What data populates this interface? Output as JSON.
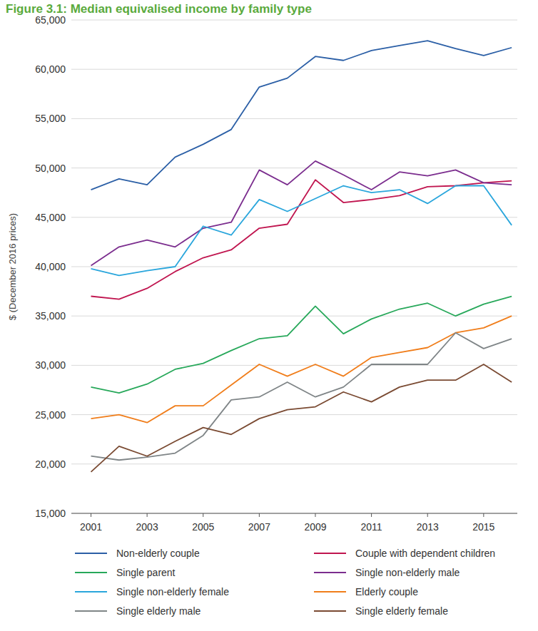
{
  "chart_data": {
    "type": "line",
    "title": "Figure 3.1: Median equivalised income by family type",
    "y_label": "$ (December 2016 prices)",
    "x": [
      2001,
      2002,
      2003,
      2004,
      2005,
      2006,
      2007,
      2008,
      2009,
      2010,
      2011,
      2012,
      2013,
      2014,
      2015,
      2016
    ],
    "xlim": [
      2000.3,
      2016.2
    ],
    "xticks": [
      2001,
      2003,
      2005,
      2007,
      2009,
      2011,
      2013,
      2015
    ],
    "ylim": [
      15000,
      65000
    ],
    "yticks": [
      {
        "value": 15000,
        "label": "15,000"
      },
      {
        "value": 20000,
        "label": "20,000"
      },
      {
        "value": 25000,
        "label": "25,000"
      },
      {
        "value": 30000,
        "label": "30,000"
      },
      {
        "value": 35000,
        "label": "35,000"
      },
      {
        "value": 40000,
        "label": "40,000"
      },
      {
        "value": 45000,
        "label": "45,000"
      },
      {
        "value": 50000,
        "label": "50,000"
      },
      {
        "value": 55000,
        "label": "55,000"
      },
      {
        "value": 60000,
        "label": "60,000"
      },
      {
        "value": 65000,
        "label": "65,000"
      }
    ],
    "grid": true,
    "legend": "bottom",
    "series": [
      {
        "name": "Non-elderly couple",
        "color": "#2b5fa6",
        "values": [
          47800,
          48900,
          48300,
          51100,
          52400,
          53900,
          58200,
          59100,
          61300,
          60900,
          61900,
          62400,
          62900,
          62100,
          61400,
          62200
        ]
      },
      {
        "name": "Couple with dependent children",
        "color": "#c0154f",
        "values": [
          37000,
          36700,
          37800,
          39500,
          40900,
          41700,
          43900,
          44300,
          48800,
          46500,
          46800,
          47200,
          48100,
          48200,
          48500,
          48700
        ]
      },
      {
        "name": "Single parent",
        "color": "#27a85a",
        "values": [
          27800,
          27200,
          28100,
          29600,
          30200,
          31500,
          32700,
          33000,
          36000,
          33200,
          34700,
          35700,
          36300,
          35000,
          36200,
          37000
        ]
      },
      {
        "name": "Single non-elderly male",
        "color": "#7b2d8e",
        "values": [
          40100,
          42000,
          42700,
          42000,
          43900,
          44500,
          49800,
          48300,
          50700,
          49300,
          47800,
          49600,
          49200,
          49800,
          48500,
          48300
        ]
      },
      {
        "name": "Single non-elderly female",
        "color": "#2aa6dc",
        "values": [
          39800,
          39100,
          39600,
          40000,
          44100,
          43200,
          46800,
          45600,
          46900,
          48200,
          47500,
          47800,
          46400,
          48200,
          48200,
          44200
        ]
      },
      {
        "name": "Elderly couple",
        "color": "#f07d1a",
        "values": [
          24600,
          25000,
          24200,
          25900,
          25900,
          28000,
          30100,
          28900,
          30100,
          28900,
          30800,
          31300,
          31800,
          33300,
          33800,
          35000
        ]
      },
      {
        "name": "Single elderly male",
        "color": "#7f8587",
        "values": [
          20800,
          20400,
          20700,
          21100,
          22900,
          26500,
          26800,
          28300,
          26800,
          27800,
          30100,
          30100,
          30100,
          33300,
          31700,
          32700
        ]
      },
      {
        "name": "Single elderly female",
        "color": "#7a4a32",
        "values": [
          19200,
          21800,
          20800,
          22300,
          23700,
          23000,
          24600,
          25500,
          25800,
          27300,
          26300,
          27800,
          28500,
          28500,
          30100,
          28300
        ]
      }
    ]
  }
}
